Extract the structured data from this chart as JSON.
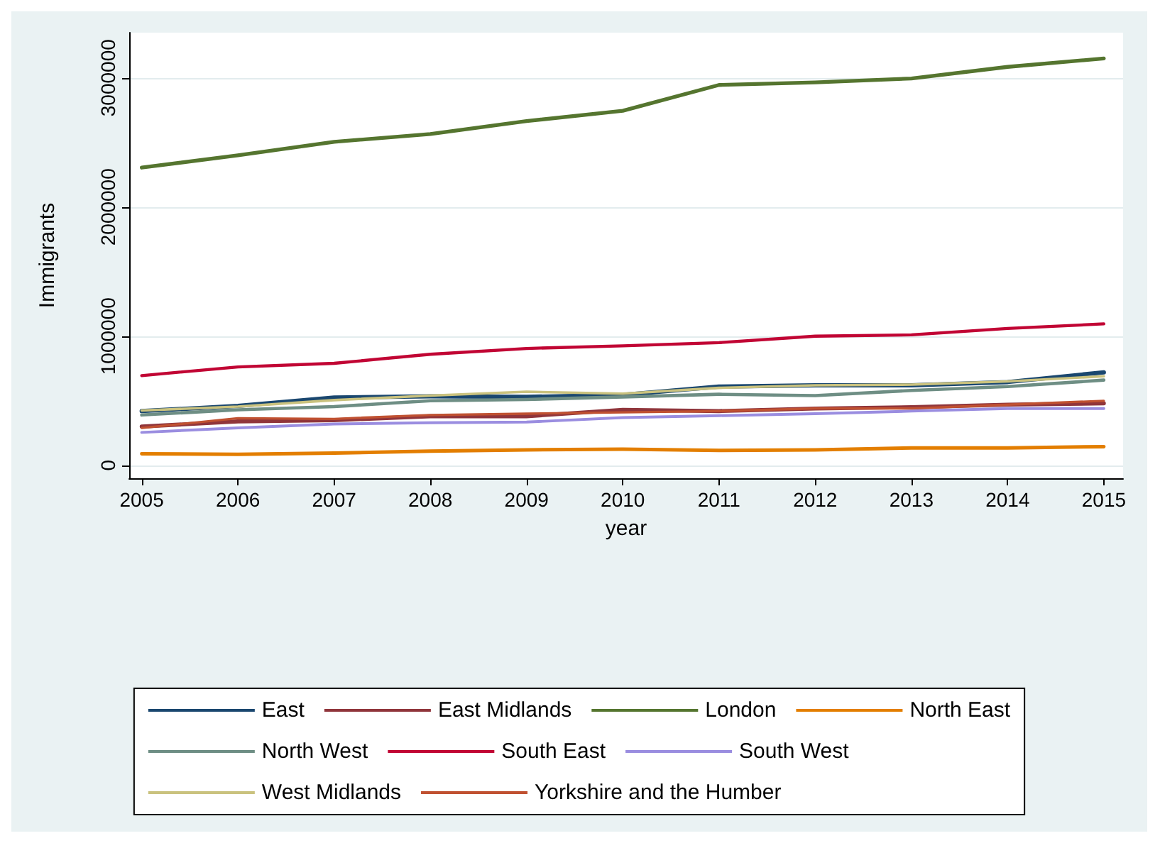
{
  "chart_data": {
    "type": "line",
    "xlabel": "year",
    "ylabel": "Immigrants",
    "x": [
      2005,
      2006,
      2007,
      2008,
      2009,
      2010,
      2011,
      2012,
      2013,
      2014,
      2015
    ],
    "xlim": [
      2004.87,
      2015.2
    ],
    "xticks": [
      2005,
      2006,
      2007,
      2008,
      2009,
      2010,
      2011,
      2012,
      2013,
      2014,
      2015
    ],
    "ylim": [
      -100000,
      3350000
    ],
    "yticks": [
      0,
      1000000,
      2000000,
      3000000
    ],
    "grid": "y",
    "legend": "bottom",
    "marker": "none",
    "line_style": "solid",
    "series": [
      {
        "name": "East",
        "color": "#1a476f",
        "values": [
          420000,
          460000,
          525000,
          535000,
          530000,
          545000,
          610000,
          620000,
          620000,
          645000,
          720000
        ]
      },
      {
        "name": "East Midlands",
        "color": "#90353b",
        "values": [
          300000,
          340000,
          350000,
          380000,
          380000,
          430000,
          420000,
          440000,
          450000,
          470000,
          480000
        ]
      },
      {
        "name": "London",
        "color": "#55752f",
        "values": [
          2305000,
          2400000,
          2505000,
          2565000,
          2665000,
          2745000,
          2945000,
          2965000,
          2995000,
          3085000,
          3150000
        ]
      },
      {
        "name": "North East",
        "color": "#e37e00",
        "values": [
          90000,
          85000,
          95000,
          110000,
          120000,
          125000,
          115000,
          120000,
          135000,
          135000,
          145000
        ]
      },
      {
        "name": "North West",
        "color": "#6e8e84",
        "values": [
          390000,
          430000,
          455000,
          500000,
          510000,
          530000,
          550000,
          540000,
          580000,
          610000,
          660000
        ]
      },
      {
        "name": "South East",
        "color": "#c10534",
        "values": [
          695000,
          762000,
          790000,
          860000,
          905000,
          925000,
          950000,
          1000000,
          1010000,
          1060000,
          1095000
        ]
      },
      {
        "name": "South West",
        "color": "#9a8de0",
        "values": [
          255000,
          290000,
          320000,
          330000,
          335000,
          370000,
          385000,
          400000,
          420000,
          440000,
          440000
        ]
      },
      {
        "name": "West Midlands",
        "color": "#cac27e",
        "values": [
          425000,
          455000,
          505000,
          540000,
          570000,
          555000,
          600000,
          620000,
          625000,
          650000,
          690000
        ]
      },
      {
        "name": "Yorkshire and the Humber",
        "color": "#c05131",
        "values": [
          290000,
          365000,
          360000,
          390000,
          400000,
          410000,
          420000,
          440000,
          440000,
          470000,
          500000
        ]
      }
    ]
  }
}
